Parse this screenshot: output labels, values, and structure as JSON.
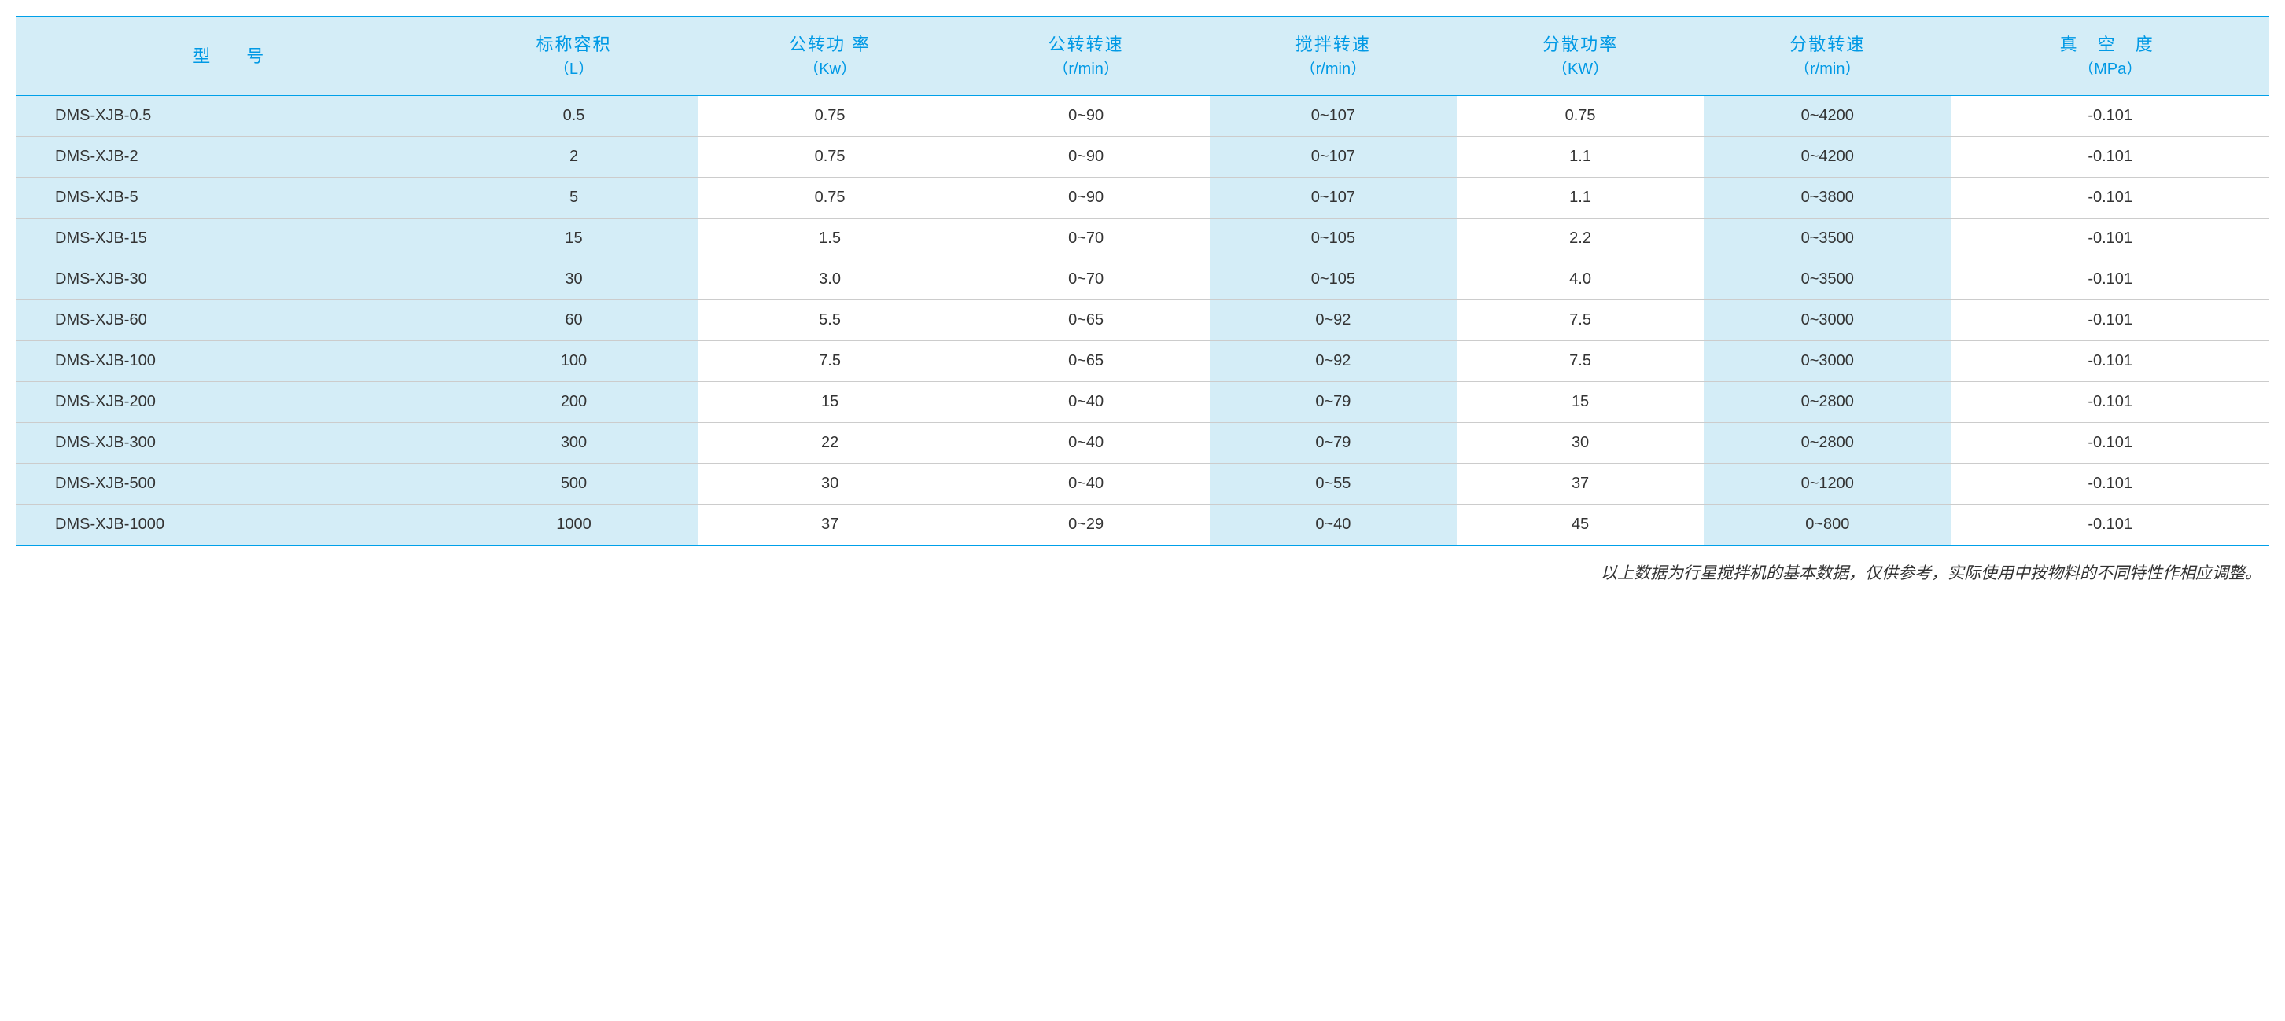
{
  "table": {
    "columns": [
      {
        "main": "型　号",
        "sub": ""
      },
      {
        "main": "标称容积",
        "sub": "（L）"
      },
      {
        "main": "公转功 率",
        "sub": "（Kw）"
      },
      {
        "main": "公转转速",
        "sub": "（r/min）"
      },
      {
        "main": "搅拌转速",
        "sub": "（r/min）"
      },
      {
        "main": "分散功率",
        "sub": "（KW）"
      },
      {
        "main": "分散转速",
        "sub": "（r/min）"
      },
      {
        "main": "真 空 度",
        "sub": "（MPa）"
      }
    ],
    "highlight_columns": [
      0,
      1,
      4,
      6
    ],
    "rows": [
      [
        "DMS-XJB-0.5",
        "0.5",
        "0.75",
        "0~90",
        "0~107",
        "0.75",
        "0~4200",
        "-0.101"
      ],
      [
        "DMS-XJB-2",
        "2",
        "0.75",
        "0~90",
        "0~107",
        "1.1",
        "0~4200",
        "-0.101"
      ],
      [
        "DMS-XJB-5",
        "5",
        "0.75",
        "0~90",
        "0~107",
        "1.1",
        "0~3800",
        "-0.101"
      ],
      [
        "DMS-XJB-15",
        "15",
        "1.5",
        "0~70",
        "0~105",
        "2.2",
        "0~3500",
        "-0.101"
      ],
      [
        "DMS-XJB-30",
        "30",
        "3.0",
        "0~70",
        "0~105",
        "4.0",
        "0~3500",
        "-0.101"
      ],
      [
        "DMS-XJB-60",
        "60",
        "5.5",
        "0~65",
        "0~92",
        "7.5",
        "0~3000",
        "-0.101"
      ],
      [
        "DMS-XJB-100",
        "100",
        "7.5",
        "0~65",
        "0~92",
        "7.5",
        "0~3000",
        "-0.101"
      ],
      [
        "DMS-XJB-200",
        "200",
        "15",
        "0~40",
        "0~79",
        "15",
        "0~2800",
        "-0.101"
      ],
      [
        "DMS-XJB-300",
        "300",
        "22",
        "0~40",
        "0~79",
        "30",
        "0~2800",
        "-0.101"
      ],
      [
        "DMS-XJB-500",
        "500",
        "30",
        "0~40",
        "0~55",
        "37",
        "0~1200",
        "-0.101"
      ],
      [
        "DMS-XJB-1000",
        "1000",
        "37",
        "0~29",
        "0~40",
        "45",
        "0~800",
        "-0.101"
      ]
    ],
    "styling": {
      "border_color": "#00a0e9",
      "header_bg": "#d4edf7",
      "header_text_color": "#0099e5",
      "highlight_bg": "#d4edf7",
      "row_border_color": "#cccccc",
      "body_text_color": "#333333",
      "header_fontsize": 22,
      "body_fontsize": 20
    }
  },
  "footnote": "以上数据为行星搅拌机的基本数据，仅供参考，实际使用中按物料的不同特性作相应调整。"
}
